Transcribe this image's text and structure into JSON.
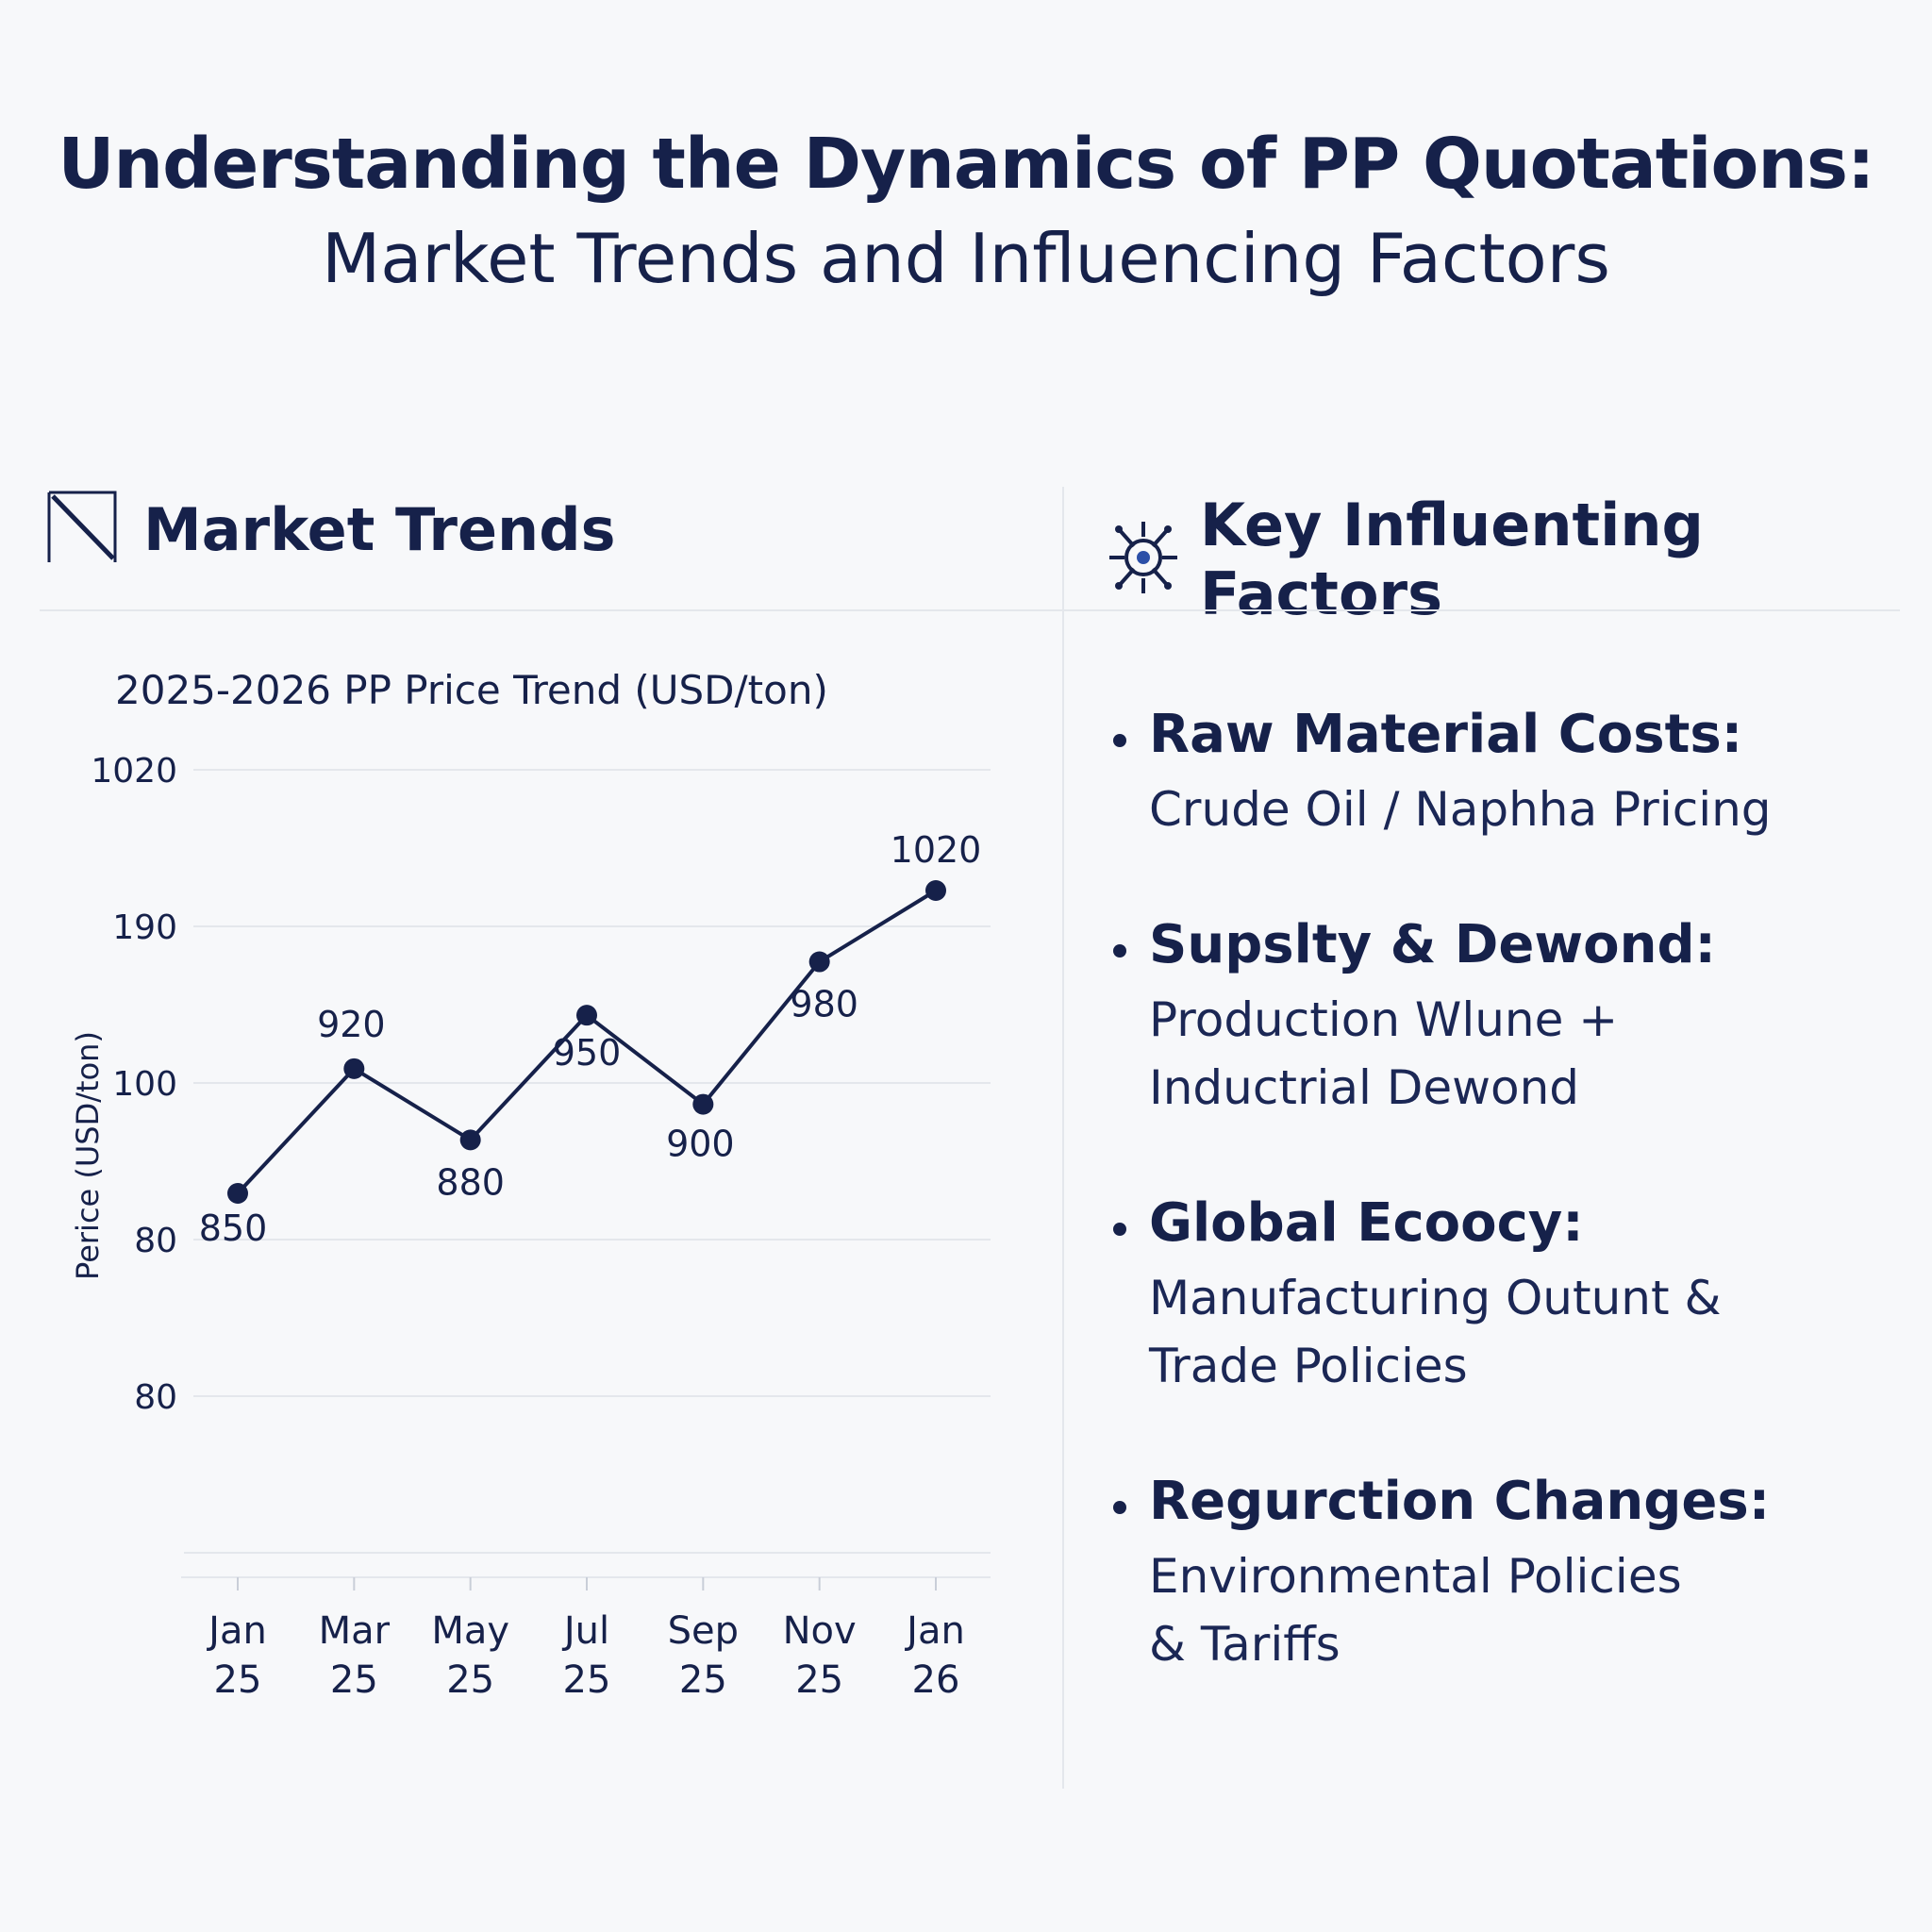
{
  "header": {
    "title": "Understanding the Dynamics of PP Quotations:",
    "subtitle": "Market Trends and Influencing Factors"
  },
  "market_section": {
    "heading": "Market Trends",
    "icon": "trend-line-icon"
  },
  "factors_section": {
    "heading": "Key Influenting Factors",
    "icon": "network-gear-icon",
    "items": [
      {
        "title": "Raw Material Costs:",
        "description": "Crude Oil / Naphha Pricing"
      },
      {
        "title": "Supslty & Dewond:",
        "description": "Production Wlune +\nInductrial Dewond"
      },
      {
        "title": "Global Ecoocy:",
        "description": "Manufacturing Outunt &\nTrade Policies"
      },
      {
        "title": "Regurction Changes:",
        "description": "Environmental Policies\n& Tariffs"
      }
    ]
  },
  "colors": {
    "primary": "#16214a",
    "grid": "#e4e7ec",
    "background": "#f7f8fa"
  },
  "chart_data": {
    "type": "line",
    "title": "2025-2026 PP Price Trend (USD/ton)",
    "xlabel": "",
    "ylabel": "Perice (USD/ton)",
    "y_tick_labels": [
      "1020",
      "190",
      "100",
      "80",
      "80"
    ],
    "categories": [
      "Jan 25",
      "Mar 25",
      "May 25",
      "Jul 25",
      "Sep 25",
      "Nov 25",
      "Jan 26"
    ],
    "values": [
      850,
      920,
      880,
      950,
      900,
      980,
      1020
    ],
    "point_labels": [
      "850",
      "920",
      "880",
      "950",
      "900",
      "980",
      "1020"
    ],
    "grid": true,
    "legend": "none"
  }
}
